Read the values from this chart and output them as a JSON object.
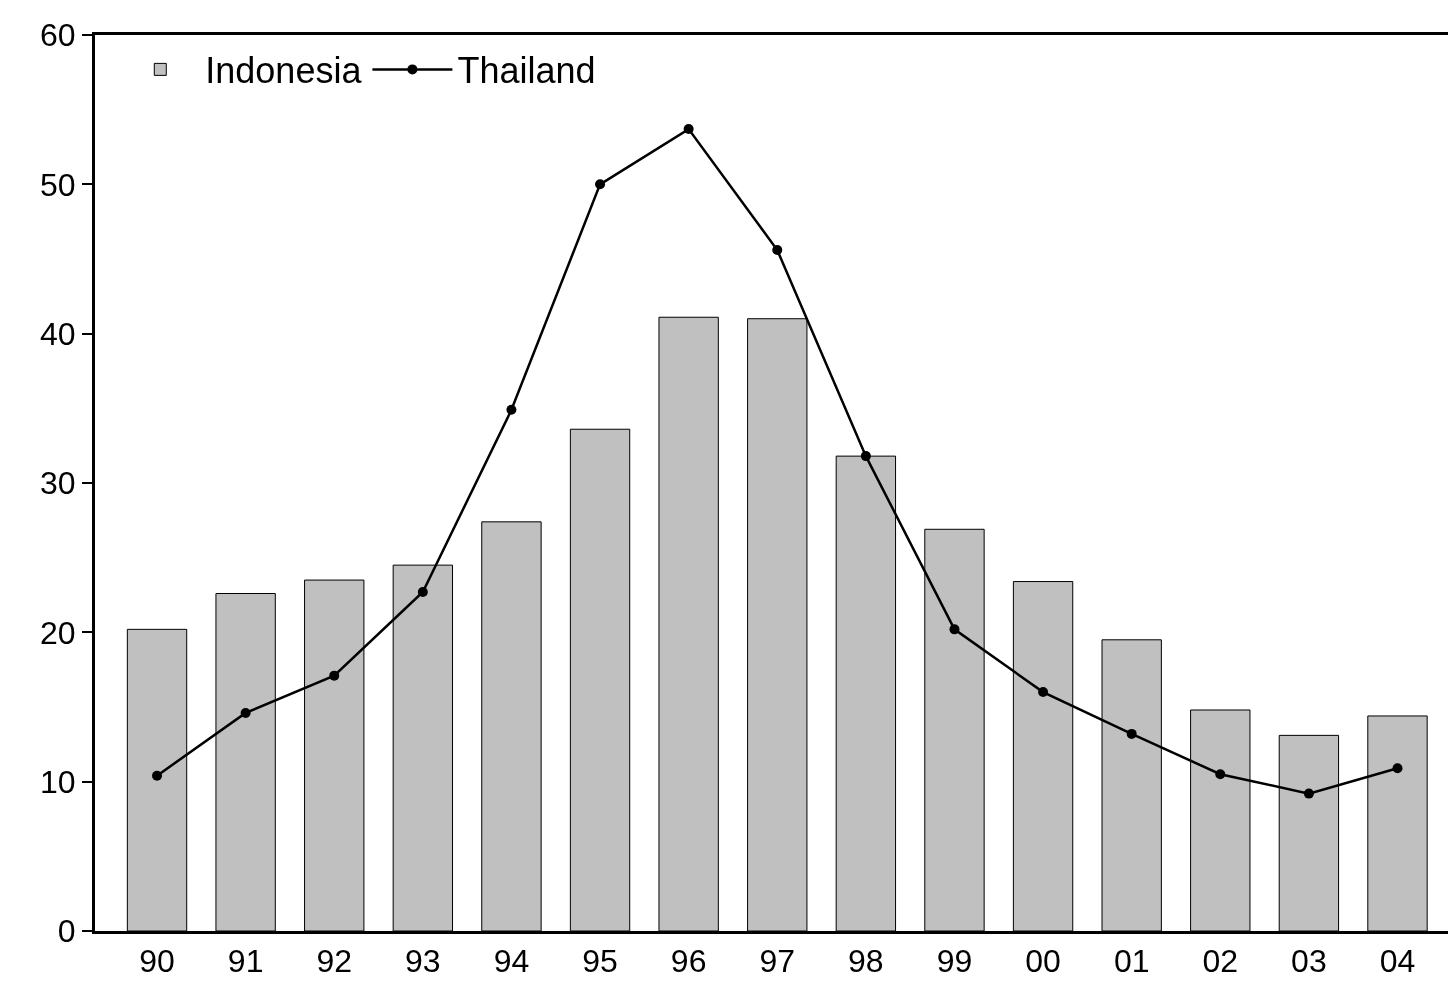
{
  "chart_data": {
    "type": "bar",
    "categories": [
      "90",
      "91",
      "92",
      "93",
      "94",
      "95",
      "96",
      "97",
      "98",
      "99",
      "00",
      "01",
      "02",
      "03",
      "04"
    ],
    "series": [
      {
        "name": "Indonesia",
        "color": "#c0c0c0",
        "values": [
          20.2,
          22.6,
          23.5,
          24.5,
          27.4,
          33.6,
          41.1,
          41.0,
          31.8,
          26.9,
          23.4,
          19.5,
          14.8,
          13.1,
          14.4
        ]
      },
      {
        "name": "Thailand",
        "type": "line",
        "color": "#000000",
        "values": [
          10.4,
          14.6,
          17.1,
          22.7,
          34.9,
          50.0,
          53.7,
          45.6,
          31.8,
          20.2,
          16.0,
          13.2,
          10.5,
          9.2,
          10.9
        ]
      }
    ],
    "ylim": [
      0,
      60
    ],
    "yticks": [
      0,
      10,
      20,
      30,
      40,
      50,
      60
    ],
    "grid": false,
    "legend": "top left",
    "marker": "circle",
    "line_style": "solid"
  }
}
